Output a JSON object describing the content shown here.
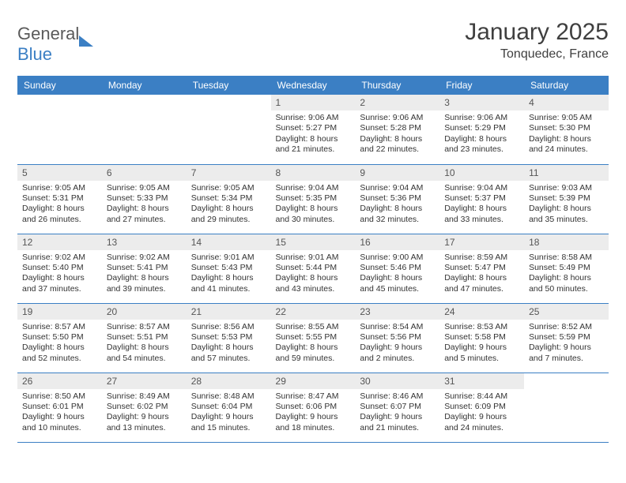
{
  "logo": {
    "word1": "General",
    "word2": "Blue"
  },
  "title": "January 2025",
  "subtitle": "Tonquedec, France",
  "header_bg": "#3b7fc4",
  "columns": [
    "Sunday",
    "Monday",
    "Tuesday",
    "Wednesday",
    "Thursday",
    "Friday",
    "Saturday"
  ],
  "weeks": [
    [
      {
        "n": "",
        "s": "",
        "ss": "",
        "d": "",
        "empty": true
      },
      {
        "n": "",
        "s": "",
        "ss": "",
        "d": "",
        "empty": true
      },
      {
        "n": "",
        "s": "",
        "ss": "",
        "d": "",
        "empty": true
      },
      {
        "n": "1",
        "s": "Sunrise: 9:06 AM",
        "ss": "Sunset: 5:27 PM",
        "d": "Daylight: 8 hours and 21 minutes."
      },
      {
        "n": "2",
        "s": "Sunrise: 9:06 AM",
        "ss": "Sunset: 5:28 PM",
        "d": "Daylight: 8 hours and 22 minutes."
      },
      {
        "n": "3",
        "s": "Sunrise: 9:06 AM",
        "ss": "Sunset: 5:29 PM",
        "d": "Daylight: 8 hours and 23 minutes."
      },
      {
        "n": "4",
        "s": "Sunrise: 9:05 AM",
        "ss": "Sunset: 5:30 PM",
        "d": "Daylight: 8 hours and 24 minutes."
      }
    ],
    [
      {
        "n": "5",
        "s": "Sunrise: 9:05 AM",
        "ss": "Sunset: 5:31 PM",
        "d": "Daylight: 8 hours and 26 minutes."
      },
      {
        "n": "6",
        "s": "Sunrise: 9:05 AM",
        "ss": "Sunset: 5:33 PM",
        "d": "Daylight: 8 hours and 27 minutes."
      },
      {
        "n": "7",
        "s": "Sunrise: 9:05 AM",
        "ss": "Sunset: 5:34 PM",
        "d": "Daylight: 8 hours and 29 minutes."
      },
      {
        "n": "8",
        "s": "Sunrise: 9:04 AM",
        "ss": "Sunset: 5:35 PM",
        "d": "Daylight: 8 hours and 30 minutes."
      },
      {
        "n": "9",
        "s": "Sunrise: 9:04 AM",
        "ss": "Sunset: 5:36 PM",
        "d": "Daylight: 8 hours and 32 minutes."
      },
      {
        "n": "10",
        "s": "Sunrise: 9:04 AM",
        "ss": "Sunset: 5:37 PM",
        "d": "Daylight: 8 hours and 33 minutes."
      },
      {
        "n": "11",
        "s": "Sunrise: 9:03 AM",
        "ss": "Sunset: 5:39 PM",
        "d": "Daylight: 8 hours and 35 minutes."
      }
    ],
    [
      {
        "n": "12",
        "s": "Sunrise: 9:02 AM",
        "ss": "Sunset: 5:40 PM",
        "d": "Daylight: 8 hours and 37 minutes."
      },
      {
        "n": "13",
        "s": "Sunrise: 9:02 AM",
        "ss": "Sunset: 5:41 PM",
        "d": "Daylight: 8 hours and 39 minutes."
      },
      {
        "n": "14",
        "s": "Sunrise: 9:01 AM",
        "ss": "Sunset: 5:43 PM",
        "d": "Daylight: 8 hours and 41 minutes."
      },
      {
        "n": "15",
        "s": "Sunrise: 9:01 AM",
        "ss": "Sunset: 5:44 PM",
        "d": "Daylight: 8 hours and 43 minutes."
      },
      {
        "n": "16",
        "s": "Sunrise: 9:00 AM",
        "ss": "Sunset: 5:46 PM",
        "d": "Daylight: 8 hours and 45 minutes."
      },
      {
        "n": "17",
        "s": "Sunrise: 8:59 AM",
        "ss": "Sunset: 5:47 PM",
        "d": "Daylight: 8 hours and 47 minutes."
      },
      {
        "n": "18",
        "s": "Sunrise: 8:58 AM",
        "ss": "Sunset: 5:49 PM",
        "d": "Daylight: 8 hours and 50 minutes."
      }
    ],
    [
      {
        "n": "19",
        "s": "Sunrise: 8:57 AM",
        "ss": "Sunset: 5:50 PM",
        "d": "Daylight: 8 hours and 52 minutes."
      },
      {
        "n": "20",
        "s": "Sunrise: 8:57 AM",
        "ss": "Sunset: 5:51 PM",
        "d": "Daylight: 8 hours and 54 minutes."
      },
      {
        "n": "21",
        "s": "Sunrise: 8:56 AM",
        "ss": "Sunset: 5:53 PM",
        "d": "Daylight: 8 hours and 57 minutes."
      },
      {
        "n": "22",
        "s": "Sunrise: 8:55 AM",
        "ss": "Sunset: 5:55 PM",
        "d": "Daylight: 8 hours and 59 minutes."
      },
      {
        "n": "23",
        "s": "Sunrise: 8:54 AM",
        "ss": "Sunset: 5:56 PM",
        "d": "Daylight: 9 hours and 2 minutes."
      },
      {
        "n": "24",
        "s": "Sunrise: 8:53 AM",
        "ss": "Sunset: 5:58 PM",
        "d": "Daylight: 9 hours and 5 minutes."
      },
      {
        "n": "25",
        "s": "Sunrise: 8:52 AM",
        "ss": "Sunset: 5:59 PM",
        "d": "Daylight: 9 hours and 7 minutes."
      }
    ],
    [
      {
        "n": "26",
        "s": "Sunrise: 8:50 AM",
        "ss": "Sunset: 6:01 PM",
        "d": "Daylight: 9 hours and 10 minutes."
      },
      {
        "n": "27",
        "s": "Sunrise: 8:49 AM",
        "ss": "Sunset: 6:02 PM",
        "d": "Daylight: 9 hours and 13 minutes."
      },
      {
        "n": "28",
        "s": "Sunrise: 8:48 AM",
        "ss": "Sunset: 6:04 PM",
        "d": "Daylight: 9 hours and 15 minutes."
      },
      {
        "n": "29",
        "s": "Sunrise: 8:47 AM",
        "ss": "Sunset: 6:06 PM",
        "d": "Daylight: 9 hours and 18 minutes."
      },
      {
        "n": "30",
        "s": "Sunrise: 8:46 AM",
        "ss": "Sunset: 6:07 PM",
        "d": "Daylight: 9 hours and 21 minutes."
      },
      {
        "n": "31",
        "s": "Sunrise: 8:44 AM",
        "ss": "Sunset: 6:09 PM",
        "d": "Daylight: 9 hours and 24 minutes."
      },
      {
        "n": "",
        "s": "",
        "ss": "",
        "d": "",
        "empty": true
      }
    ]
  ]
}
